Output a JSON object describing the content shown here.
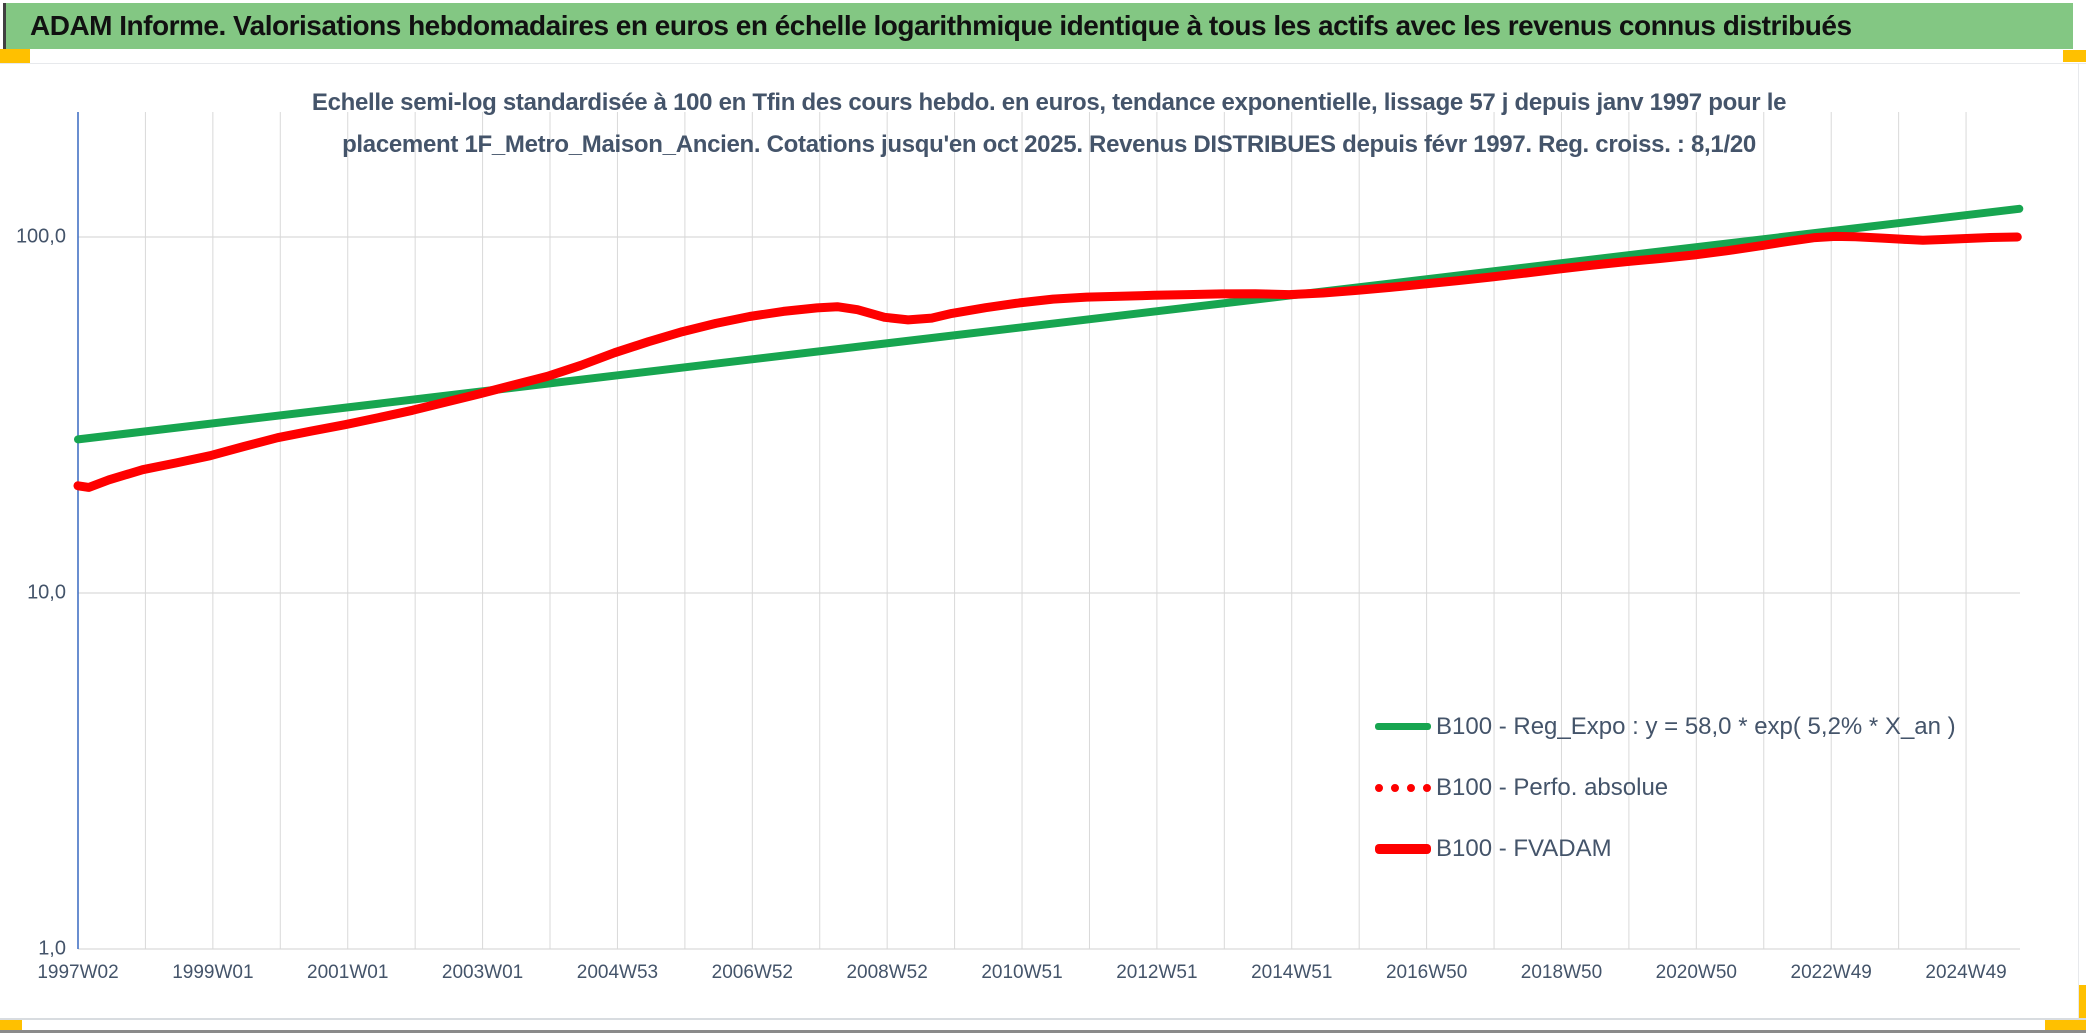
{
  "banner": {
    "title": "ADAM Informe. Valorisations hebdomadaires en euros en échelle logarithmique identique à tous les actifs avec les revenus connus distribués"
  },
  "chart": {
    "title_line1": "Echelle semi-log standardisée à 100 en Tfin des cours hebdo. en euros, tendance exponentielle, lissage 57 j depuis janv 1997 pour le",
    "title_line2": "placement 1F_Metro_Maison_Ancien. Cotations jusqu'en oct 2025. Revenus DISTRIBUES depuis févr 1997. Reg. croiss. : 8,1/20",
    "y_ticks": [
      "100,0",
      "10,0",
      "1,0"
    ]
  },
  "legend": {
    "items": [
      {
        "label": "B100 - Reg_Expo : y = 58,0 * exp( 5,2% *  X_an )",
        "swatch": "green-solid"
      },
      {
        "label": "B100 - Perfo. absolue",
        "swatch": "red-dotted"
      },
      {
        "label": "B100 - FVADAM",
        "swatch": "red-solid"
      }
    ]
  },
  "colors": {
    "banner_bg": "#83C783",
    "gold_marker": "#FFC000",
    "regression_green": "#17A550",
    "performance_red": "#FE0000",
    "axis_blue": "#4472C4",
    "grid_gray": "#D9D9D9",
    "text_blue_gray": "#44546A"
  },
  "chart_data": {
    "type": "line",
    "y_scale": "log10",
    "ylim": [
      1,
      225
    ],
    "x_range_years": [
      1997.04,
      2025.83
    ],
    "grid": "both",
    "legend_position": "inside-right-bottom",
    "x_ticklabels": [
      "1997W02",
      "1999W01",
      "2001W01",
      "2003W01",
      "2004W53",
      "2006W52",
      "2008W52",
      "2010W51",
      "2012W51",
      "2014W51",
      "2016W50",
      "2018W50",
      "2020W50",
      "2022W49",
      "2024W49"
    ],
    "y_ticklabels": [
      "100,0",
      "10,0",
      "1,0"
    ],
    "series": [
      {
        "name": "B100 - Reg_Expo : y = 58,0 * exp( 5,2% *  X_an )",
        "color": "#17A550",
        "style": "solid",
        "width": 8,
        "points": [
          [
            1997.04,
            27.0
          ],
          [
            2025.83,
            120.0
          ]
        ]
      },
      {
        "name": "B100 - Perfo. absolue",
        "color": "#FE0000",
        "style": "dotted",
        "width": 8,
        "points_same_as": 2
      },
      {
        "name": "B100 - FVADAM",
        "color": "#FE0000",
        "style": "solid",
        "width": 9,
        "points": [
          [
            1997.04,
            20.0
          ],
          [
            1997.2,
            19.8
          ],
          [
            1997.5,
            20.8
          ],
          [
            1998,
            22.2
          ],
          [
            1998.5,
            23.2
          ],
          [
            1999,
            24.3
          ],
          [
            1999.5,
            25.8
          ],
          [
            2000,
            27.3
          ],
          [
            2000.5,
            28.5
          ],
          [
            2001,
            29.7
          ],
          [
            2001.5,
            31.1
          ],
          [
            2002,
            32.6
          ],
          [
            2002.5,
            34.4
          ],
          [
            2003,
            36.3
          ],
          [
            2003.5,
            38.4
          ],
          [
            2004,
            40.6
          ],
          [
            2004.5,
            43.6
          ],
          [
            2005,
            47.3
          ],
          [
            2005.5,
            50.8
          ],
          [
            2006,
            54.2
          ],
          [
            2006.5,
            57.2
          ],
          [
            2007,
            59.8
          ],
          [
            2007.5,
            61.8
          ],
          [
            2008,
            63.2
          ],
          [
            2008.3,
            63.7
          ],
          [
            2008.6,
            62.5
          ],
          [
            2009,
            59.5
          ],
          [
            2009.35,
            58.5
          ],
          [
            2009.7,
            59.2
          ],
          [
            2010,
            61.0
          ],
          [
            2010.5,
            63.3
          ],
          [
            2011,
            65.3
          ],
          [
            2011.5,
            66.9
          ],
          [
            2012,
            67.8
          ],
          [
            2012.5,
            68.2
          ],
          [
            2013,
            68.6
          ],
          [
            2013.5,
            68.9
          ],
          [
            2014,
            69.2
          ],
          [
            2014.5,
            69.3
          ],
          [
            2015,
            68.9
          ],
          [
            2015.5,
            69.6
          ],
          [
            2016,
            70.8
          ],
          [
            2016.5,
            72.2
          ],
          [
            2017,
            73.8
          ],
          [
            2017.5,
            75.4
          ],
          [
            2018,
            77.2
          ],
          [
            2018.5,
            79.2
          ],
          [
            2019,
            81.3
          ],
          [
            2019.5,
            83.4
          ],
          [
            2020,
            85.3
          ],
          [
            2020.5,
            87.0
          ],
          [
            2021,
            89.0
          ],
          [
            2021.5,
            91.5
          ],
          [
            2022,
            94.5
          ],
          [
            2022.4,
            97.2
          ],
          [
            2022.8,
            99.6
          ],
          [
            2023.1,
            100.4
          ],
          [
            2023.4,
            100.1
          ],
          [
            2023.8,
            99.3
          ],
          [
            2024.1,
            98.5
          ],
          [
            2024.4,
            97.9
          ],
          [
            2024.7,
            98.4
          ],
          [
            2025,
            99.0
          ],
          [
            2025.4,
            99.7
          ],
          [
            2025.8,
            100.0
          ]
        ]
      }
    ]
  }
}
